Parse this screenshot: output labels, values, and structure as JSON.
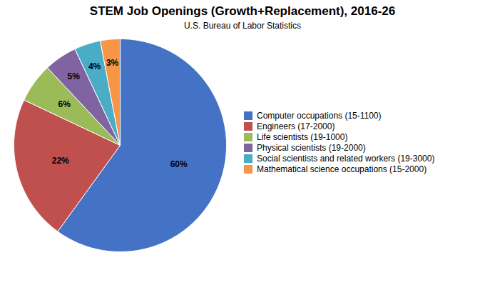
{
  "chart_data": {
    "type": "pie",
    "title": "STEM Job Openings (Growth+Replacement), 2016-26",
    "subtitle": "U.S. Bureau of Labor Statistics",
    "categories": [
      "Computer occupations (15-1100)",
      "Engineers (17-2000)",
      "Life scientists (19-1000)",
      "Physical scientists (19-2000)",
      "Social scientists and related workers (19-3000)",
      "Mathematical science occupations (15-2000)"
    ],
    "values": [
      60,
      22,
      6,
      5,
      4,
      3
    ],
    "value_labels": [
      "60%",
      "22%",
      "6%",
      "5%",
      "4%",
      "3%"
    ],
    "colors": [
      "#4472C4",
      "#C0504D",
      "#9BBB59",
      "#8064A2",
      "#4BACC6",
      "#F79646"
    ],
    "data_labels": true,
    "legend": "right"
  }
}
